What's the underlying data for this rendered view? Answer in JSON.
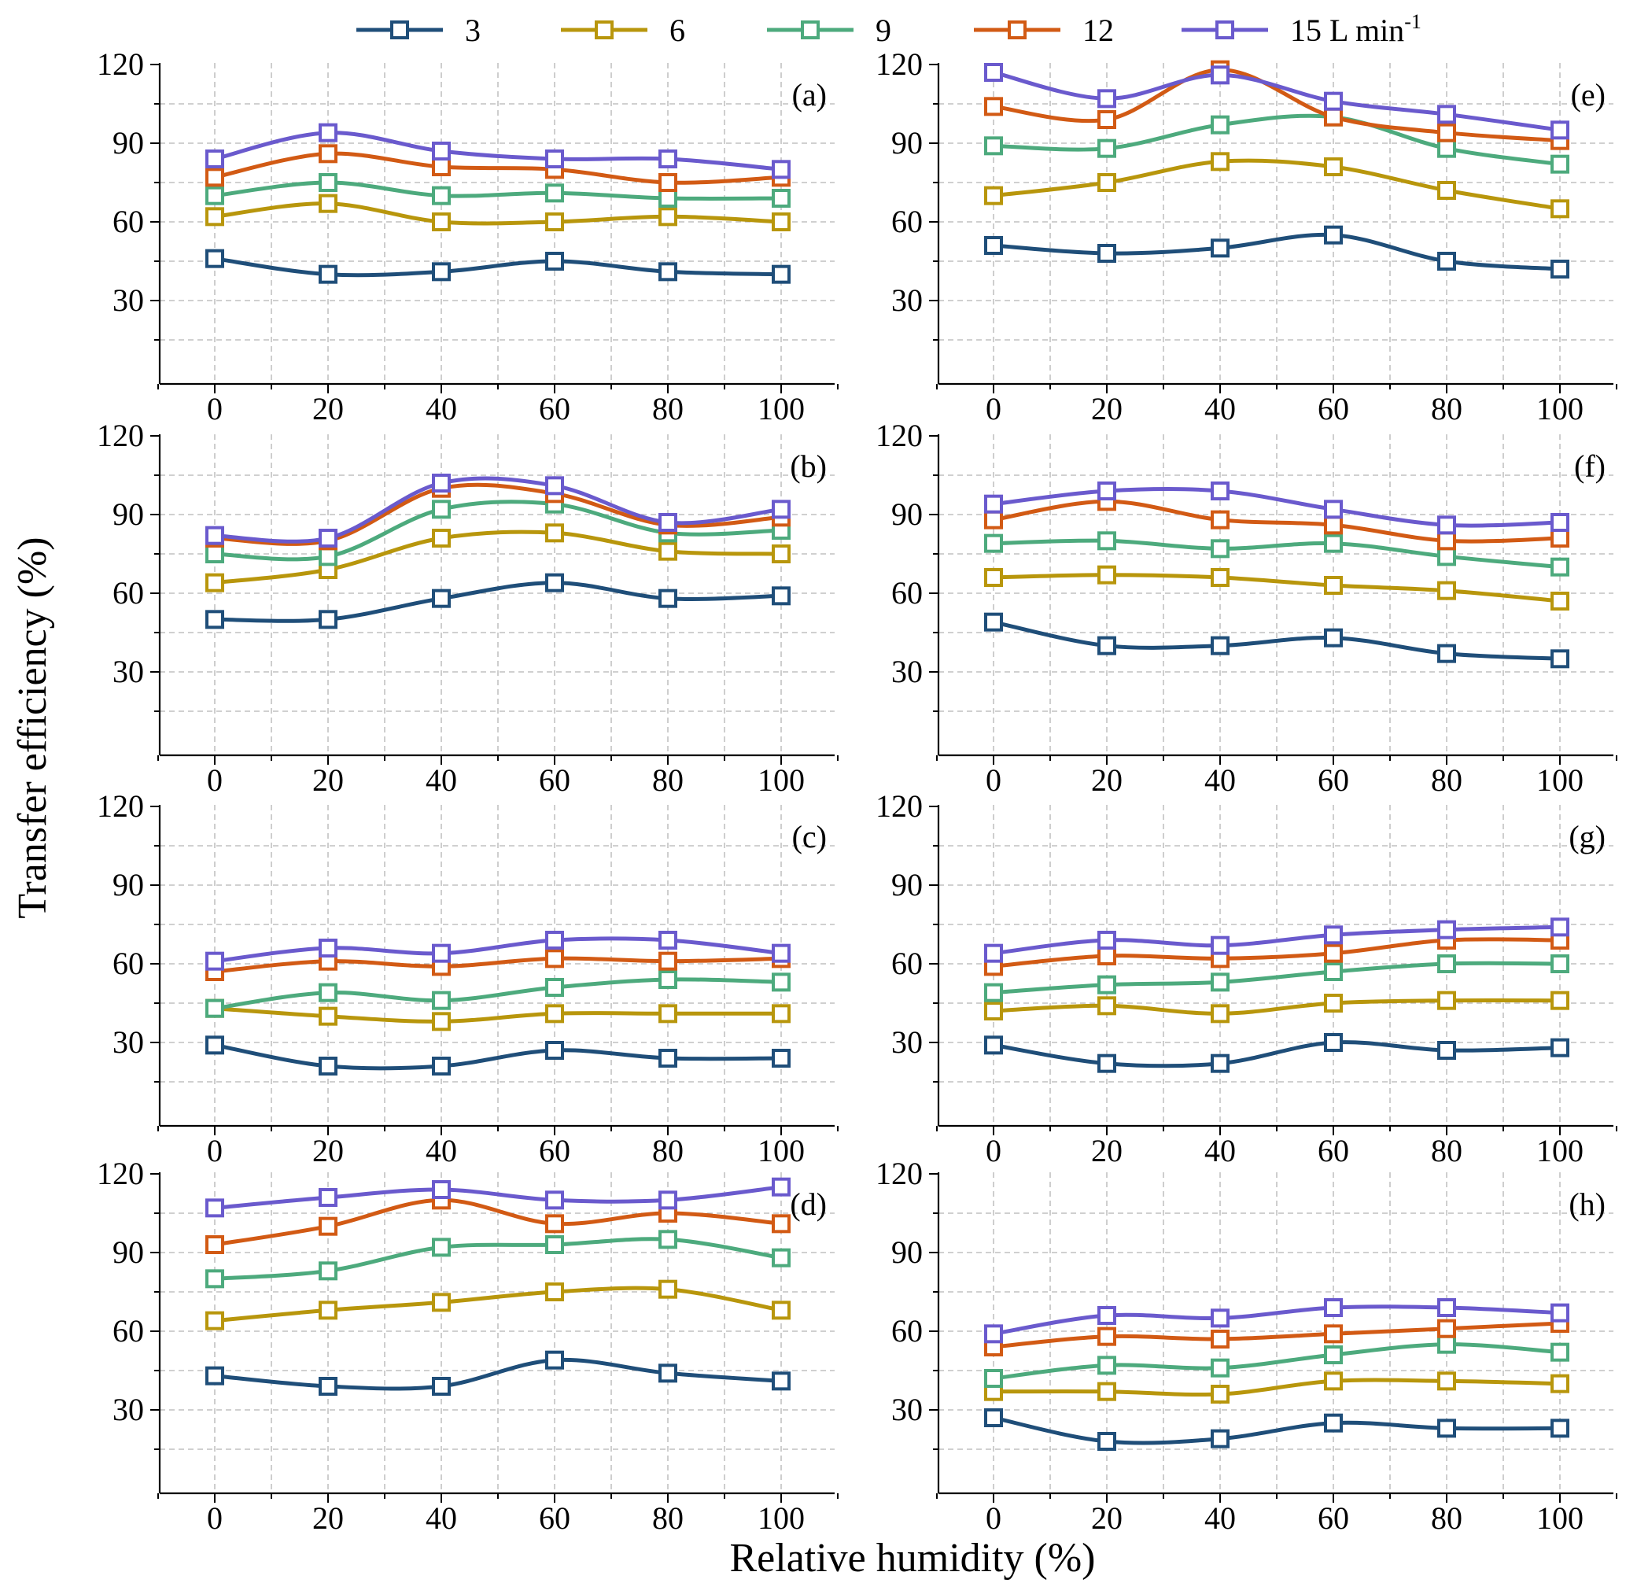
{
  "chart_data": {
    "type": "line",
    "ylabel": "Transfer efficiency (%)",
    "xlabel": "Relative humidity (%)",
    "legend_unit": "L min",
    "legend_unit_superscript": "-1",
    "legend_position": "top-center",
    "x": [
      0,
      20,
      40,
      60,
      80,
      100
    ],
    "xticks": [
      0,
      20,
      40,
      60,
      80,
      100
    ],
    "xlim": [
      -10,
      110
    ],
    "ylim": [
      0,
      120
    ],
    "yticks": [
      30,
      60,
      90,
      120
    ],
    "grid": true,
    "series_names": [
      "3",
      "6",
      "9",
      "12",
      "15"
    ],
    "series_colors": [
      "#1f4e79",
      "#b8960c",
      "#4daa7d",
      "#d25a14",
      "#6a5acd"
    ],
    "panels": [
      {
        "label": "(a)",
        "series": [
          {
            "name": "3",
            "values": [
              46,
              40,
              41,
              45,
              41,
              40
            ]
          },
          {
            "name": "6",
            "values": [
              62,
              67,
              60,
              60,
              62,
              60
            ]
          },
          {
            "name": "9",
            "values": [
              70,
              75,
              70,
              71,
              69,
              69
            ]
          },
          {
            "name": "12",
            "values": [
              77,
              86,
              81,
              80,
              75,
              77
            ]
          },
          {
            "name": "15",
            "values": [
              84,
              94,
              87,
              84,
              84,
              80
            ]
          }
        ]
      },
      {
        "label": "(b)",
        "series": [
          {
            "name": "3",
            "values": [
              50,
              50,
              58,
              64,
              58,
              59
            ]
          },
          {
            "name": "6",
            "values": [
              64,
              69,
              81,
              83,
              76,
              75
            ]
          },
          {
            "name": "9",
            "values": [
              75,
              74,
              92,
              94,
              83,
              84
            ]
          },
          {
            "name": "12",
            "values": [
              81,
              80,
              100,
              98,
              86,
              89
            ]
          },
          {
            "name": "15",
            "values": [
              82,
              81,
              102,
              101,
              87,
              92
            ]
          }
        ]
      },
      {
        "label": "(c)",
        "series": [
          {
            "name": "3",
            "values": [
              29,
              21,
              21,
              27,
              24,
              24
            ]
          },
          {
            "name": "6",
            "values": [
              43,
              40,
              38,
              41,
              41,
              41
            ]
          },
          {
            "name": "9",
            "values": [
              43,
              49,
              46,
              51,
              54,
              53
            ]
          },
          {
            "name": "12",
            "values": [
              57,
              61,
              59,
              62,
              61,
              62
            ]
          },
          {
            "name": "15",
            "values": [
              61,
              66,
              64,
              69,
              69,
              64
            ]
          }
        ]
      },
      {
        "label": "(d)",
        "series": [
          {
            "name": "3",
            "values": [
              43,
              39,
              39,
              49,
              44,
              41
            ]
          },
          {
            "name": "6",
            "values": [
              64,
              68,
              71,
              75,
              76,
              68
            ]
          },
          {
            "name": "9",
            "values": [
              80,
              83,
              92,
              93,
              95,
              88
            ]
          },
          {
            "name": "12",
            "values": [
              93,
              100,
              110,
              101,
              105,
              101
            ]
          },
          {
            "name": "15",
            "values": [
              107,
              111,
              114,
              110,
              110,
              115
            ]
          }
        ]
      },
      {
        "label": "(e)",
        "series": [
          {
            "name": "3",
            "values": [
              51,
              48,
              50,
              55,
              45,
              42
            ]
          },
          {
            "name": "6",
            "values": [
              70,
              75,
              83,
              81,
              72,
              65
            ]
          },
          {
            "name": "9",
            "values": [
              89,
              88,
              97,
              100,
              88,
              82
            ]
          },
          {
            "name": "12",
            "values": [
              104,
              99,
              118,
              100,
              94,
              91
            ]
          },
          {
            "name": "15",
            "values": [
              117,
              107,
              116,
              106,
              101,
              95
            ]
          }
        ]
      },
      {
        "label": "(f)",
        "series": [
          {
            "name": "3",
            "values": [
              49,
              40,
              40,
              43,
              37,
              35
            ]
          },
          {
            "name": "6",
            "values": [
              66,
              67,
              66,
              63,
              61,
              57
            ]
          },
          {
            "name": "9",
            "values": [
              79,
              80,
              77,
              79,
              74,
              70
            ]
          },
          {
            "name": "12",
            "values": [
              88,
              95,
              88,
              86,
              80,
              81
            ]
          },
          {
            "name": "15",
            "values": [
              94,
              99,
              99,
              92,
              86,
              87
            ]
          }
        ]
      },
      {
        "label": "(g)",
        "series": [
          {
            "name": "3",
            "values": [
              29,
              22,
              22,
              30,
              27,
              28
            ]
          },
          {
            "name": "6",
            "values": [
              42,
              44,
              41,
              45,
              46,
              46
            ]
          },
          {
            "name": "9",
            "values": [
              49,
              52,
              53,
              57,
              60,
              60
            ]
          },
          {
            "name": "12",
            "values": [
              59,
              63,
              62,
              64,
              69,
              69
            ]
          },
          {
            "name": "15",
            "values": [
              64,
              69,
              67,
              71,
              73,
              74
            ]
          }
        ]
      },
      {
        "label": "(h)",
        "series": [
          {
            "name": "3",
            "values": [
              27,
              18,
              19,
              25,
              23,
              23
            ]
          },
          {
            "name": "6",
            "values": [
              37,
              37,
              36,
              41,
              41,
              40
            ]
          },
          {
            "name": "9",
            "values": [
              42,
              47,
              46,
              51,
              55,
              52
            ]
          },
          {
            "name": "12",
            "values": [
              54,
              58,
              57,
              59,
              61,
              63
            ]
          },
          {
            "name": "15",
            "values": [
              59,
              66,
              65,
              69,
              69,
              67
            ]
          }
        ]
      }
    ]
  }
}
